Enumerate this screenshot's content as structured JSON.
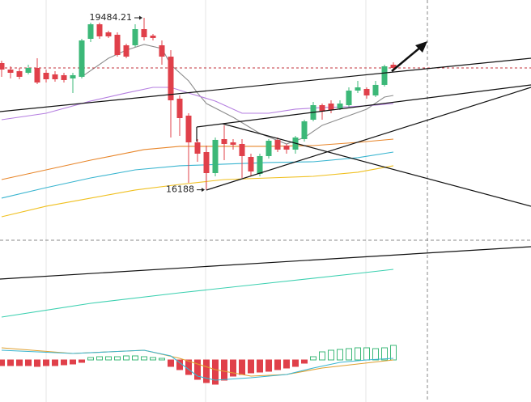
{
  "chart_data": {
    "type": "candlestick",
    "up_color": "#3cb878",
    "down_color": "#e0404a",
    "ylim": [
      15221.5,
      19825
    ],
    "open": [
      18616,
      18492,
      18461,
      18430,
      18523,
      18430,
      18399,
      18384,
      18322,
      18353,
      19081,
      19360,
      19205,
      19159,
      18957,
      18957,
      19267,
      19143,
      18957,
      18740,
      17934,
      17609,
      17097,
      16911,
      16508,
      17159,
      17097,
      17066,
      16818,
      16493,
      16834,
      17144,
      17035,
      16958,
      17159,
      17531,
      17810,
      17841,
      17748,
      17810,
      18089,
      18120,
      17996,
      18198,
      18585
    ],
    "high": [
      18663,
      18554,
      18523,
      18585,
      18709,
      18492,
      18461,
      18430,
      18430,
      19081,
      19391,
      19391,
      19236,
      19205,
      18988,
      19360,
      19484.21,
      19174,
      19050,
      18864,
      17996,
      17655,
      17159,
      17035,
      17190,
      17423,
      17159,
      17159,
      16880,
      16880,
      17159,
      17190,
      17066,
      17221,
      17531,
      17872,
      17841,
      17903,
      17903,
      18151,
      18275,
      18151,
      18275,
      18585,
      18632
    ],
    "low": [
      18353,
      18322,
      18306,
      18399,
      18213,
      18244,
      18260,
      18244,
      18043,
      18322,
      19019,
      19081,
      19097,
      18740,
      18709,
      18926,
      19050,
      19050,
      18585,
      17190,
      17221,
      16322,
      16725,
      16188,
      16446,
      16756,
      16958,
      16415,
      16446,
      16446,
      16787,
      16911,
      16880,
      16880,
      17113,
      17500,
      17531,
      17655,
      17717,
      17779,
      18043,
      17934,
      17965,
      18167,
      18461
    ],
    "close": [
      18492,
      18430,
      18353,
      18523,
      18244,
      18306,
      18306,
      18291,
      18384,
      19050,
      19360,
      19128,
      19128,
      18771,
      18740,
      19267,
      19112,
      19097,
      18740,
      17903,
      17562,
      17097,
      16880,
      16508,
      17144,
      17066,
      17051,
      16834,
      16539,
      16834,
      17128,
      16958,
      16958,
      17190,
      17500,
      17810,
      17686,
      17717,
      17841,
      18089,
      18151,
      17996,
      18198,
      18554,
      18523
    ],
    "ref_line": 18523,
    "ref_color": "#c0303a",
    "ma_series": [
      {
        "color": "#8c8c8c",
        "x": [
          9,
          12,
          14,
          16,
          18,
          19,
          21,
          22,
          23,
          26,
          29,
          32,
          34,
          36,
          39,
          41,
          43,
          44
        ],
        "values": [
          18353,
          18709,
          18864,
          18973,
          18895,
          18585,
          18275,
          18043,
          17841,
          17578,
          17268,
          17066,
          17190,
          17423,
          17609,
          17733,
          17965,
          17996
        ]
      },
      {
        "color": "#b57fe0",
        "x": [
          0,
          5,
          10,
          14,
          17,
          19,
          21,
          24,
          27,
          30,
          33,
          36,
          39,
          42,
          44
        ],
        "values": [
          17531,
          17655,
          17888,
          18043,
          18151,
          18151,
          18043,
          17888,
          17655,
          17655,
          17733,
          17764,
          17779,
          17810,
          17841
        ]
      },
      {
        "color": "#e8862a",
        "x": [
          0,
          5,
          10,
          16,
          20,
          25,
          30,
          35,
          40,
          44
        ],
        "values": [
          16384,
          16570,
          16756,
          16958,
          17020,
          17020,
          17020,
          17035,
          17097,
          17159
        ]
      },
      {
        "color": "#3ab5d0",
        "x": [
          0,
          5,
          10,
          15,
          20,
          25,
          30,
          35,
          40,
          44
        ],
        "values": [
          16028,
          16229,
          16415,
          16570,
          16648,
          16679,
          16710,
          16725,
          16803,
          16911
        ]
      },
      {
        "color": "#f0c020",
        "x": [
          0,
          5,
          10,
          15,
          20,
          25,
          30,
          35,
          40,
          44
        ],
        "values": [
          15671,
          15873,
          16028,
          16183,
          16291,
          16384,
          16415,
          16446,
          16524,
          16648
        ]
      }
    ],
    "panel2": {
      "ylim": [
        0,
        113
      ],
      "series": [
        {
          "color": "#3cd0b0",
          "x": [
            0,
            10,
            20,
            30,
            40,
            44
          ],
          "values": [
            18,
            35,
            48,
            60,
            72,
            77
          ]
        }
      ]
    },
    "macd": {
      "ylim": [
        -52,
        35
      ],
      "hist": [
        -7,
        -7,
        -7,
        -7,
        -8,
        -7,
        -7,
        -6,
        -5,
        -3,
        3,
        4,
        4,
        4,
        5,
        5,
        4,
        3,
        2,
        -8,
        -12,
        -18,
        -24,
        -28,
        -30,
        -25,
        -20,
        -18,
        -16,
        -15,
        -14,
        -12,
        -10,
        -8,
        -4,
        4,
        10,
        12,
        13,
        14,
        15,
        15,
        14,
        15,
        18
      ],
      "series": [
        {
          "color": "#e0a030",
          "x": [
            0,
            8,
            12,
            16,
            20,
            24,
            28,
            32,
            36,
            40,
            44
          ],
          "values": [
            15,
            8,
            10,
            12,
            2,
            -12,
            -20,
            -18,
            -10,
            -5,
            0
          ]
        },
        {
          "color": "#3ab5d0",
          "x": [
            0,
            8,
            12,
            16,
            19,
            22,
            24,
            28,
            32,
            35,
            38,
            41,
            44
          ],
          "values": [
            12,
            8,
            10,
            12,
            5,
            -20,
            -25,
            -22,
            -18,
            -10,
            -3,
            0,
            2
          ]
        }
      ]
    }
  }
}
